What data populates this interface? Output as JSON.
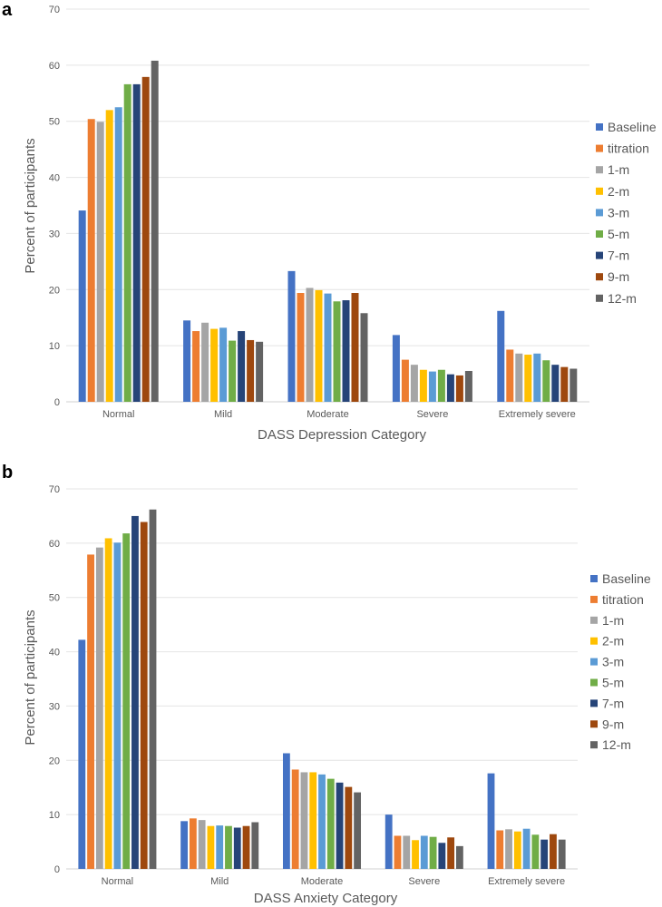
{
  "chart_data": [
    {
      "panel": "a",
      "type": "bar",
      "title": "",
      "xlabel": "DASS Depression Category",
      "ylabel": "Percent of participants",
      "ylim": [
        0,
        70
      ],
      "yticks": [
        0,
        10,
        20,
        30,
        40,
        50,
        60,
        70
      ],
      "grid": true,
      "legend_position": "right",
      "categories": [
        "Normal",
        "Mild",
        "Moderate",
        "Severe",
        "Extremely severe"
      ],
      "series": [
        {
          "name": "Baseline",
          "color": "#4472c4",
          "values": [
            34.1,
            14.5,
            23.3,
            11.9,
            16.2
          ]
        },
        {
          "name": "titration",
          "color": "#ed7d31",
          "values": [
            50.4,
            12.6,
            19.4,
            7.5,
            9.3
          ]
        },
        {
          "name": "1-m",
          "color": "#a5a5a5",
          "values": [
            49.9,
            14.1,
            20.3,
            6.6,
            8.6
          ]
        },
        {
          "name": "2-m",
          "color": "#ffc000",
          "values": [
            52.0,
            13.0,
            19.9,
            5.7,
            8.4
          ]
        },
        {
          "name": "3-m",
          "color": "#5b9bd5",
          "values": [
            52.5,
            13.2,
            19.3,
            5.4,
            8.6
          ]
        },
        {
          "name": "5-m",
          "color": "#70ad47",
          "values": [
            56.6,
            10.9,
            17.9,
            5.7,
            7.4
          ]
        },
        {
          "name": "7-m",
          "color": "#264478",
          "values": [
            56.6,
            12.6,
            18.1,
            4.9,
            6.6
          ]
        },
        {
          "name": "9-m",
          "color": "#9e480e",
          "values": [
            57.9,
            11.0,
            19.4,
            4.7,
            6.2
          ]
        },
        {
          "name": "12-m",
          "color": "#636363",
          "values": [
            60.8,
            10.7,
            15.8,
            5.5,
            5.9
          ]
        }
      ]
    },
    {
      "panel": "b",
      "type": "bar",
      "title": "",
      "xlabel": "DASS Anxiety Category",
      "ylabel": "Percent of participants",
      "ylim": [
        0,
        70
      ],
      "yticks": [
        0,
        10,
        20,
        30,
        40,
        50,
        60,
        70
      ],
      "grid": true,
      "legend_position": "right",
      "categories": [
        "Normal",
        "Mild",
        "Moderate",
        "Severe",
        "Extremely severe"
      ],
      "series": [
        {
          "name": "Baseline",
          "color": "#4472c4",
          "values": [
            42.2,
            8.8,
            21.3,
            10.0,
            17.6
          ]
        },
        {
          "name": "titration",
          "color": "#ed7d31",
          "values": [
            57.9,
            9.3,
            18.3,
            6.1,
            7.1
          ]
        },
        {
          "name": "1-m",
          "color": "#a5a5a5",
          "values": [
            59.2,
            9.0,
            17.8,
            6.1,
            7.3
          ]
        },
        {
          "name": "2-m",
          "color": "#ffc000",
          "values": [
            60.9,
            7.9,
            17.8,
            5.3,
            6.9
          ]
        },
        {
          "name": "3-m",
          "color": "#5b9bd5",
          "values": [
            60.1,
            8.0,
            17.4,
            6.1,
            7.4
          ]
        },
        {
          "name": "5-m",
          "color": "#70ad47",
          "values": [
            61.8,
            7.9,
            16.6,
            5.9,
            6.3
          ]
        },
        {
          "name": "7-m",
          "color": "#264478",
          "values": [
            65.0,
            7.6,
            15.9,
            4.8,
            5.4
          ]
        },
        {
          "name": "9-m",
          "color": "#9e480e",
          "values": [
            63.9,
            7.9,
            15.1,
            5.8,
            6.4
          ]
        },
        {
          "name": "12-m",
          "color": "#636363",
          "values": [
            66.2,
            8.6,
            14.1,
            4.2,
            5.4
          ]
        }
      ]
    }
  ]
}
